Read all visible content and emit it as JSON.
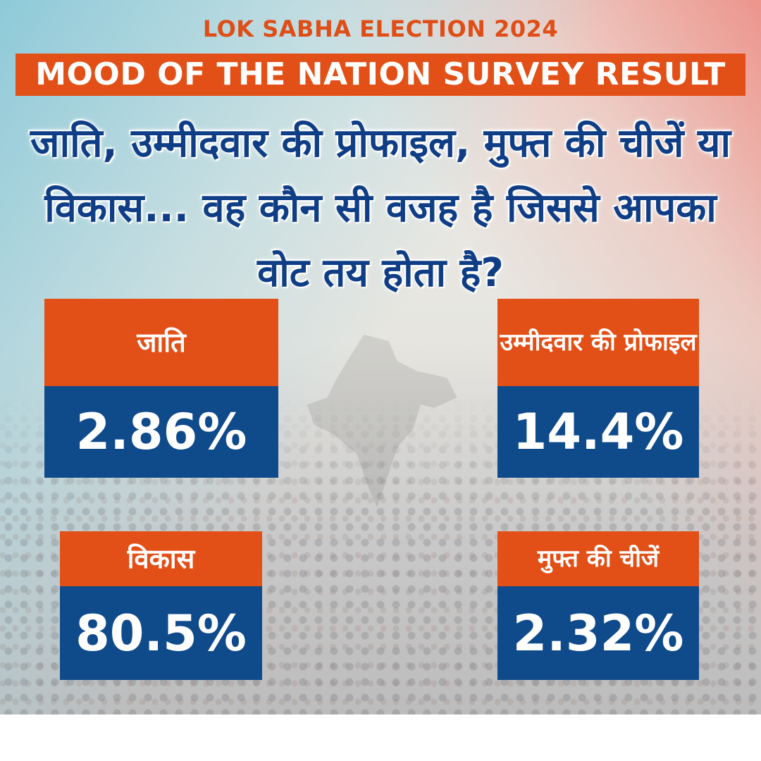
{
  "kicker": "LOK SABHA ELECTION 2024",
  "banner": "MOOD OF THE NATION SURVEY RESULT",
  "question": "जाति, उम्मीदवार की प्रोफाइल, मुफ्त की चीजें या विकास... वह कौन सी वजह है जिससे आपका वोट तय होता है?",
  "colors": {
    "accent_orange": "#e24f17",
    "value_blue": "#0f4a8b",
    "question_blue": "#0f3e86"
  },
  "results": [
    {
      "label": "जाति",
      "value": "2.86%"
    },
    {
      "label": "उम्मीदवार की प्रोफाइल",
      "value": "14.4%"
    },
    {
      "label": "विकास",
      "value": "80.5%"
    },
    {
      "label": "मुफ्त की चीजें",
      "value": "2.32%"
    }
  ]
}
